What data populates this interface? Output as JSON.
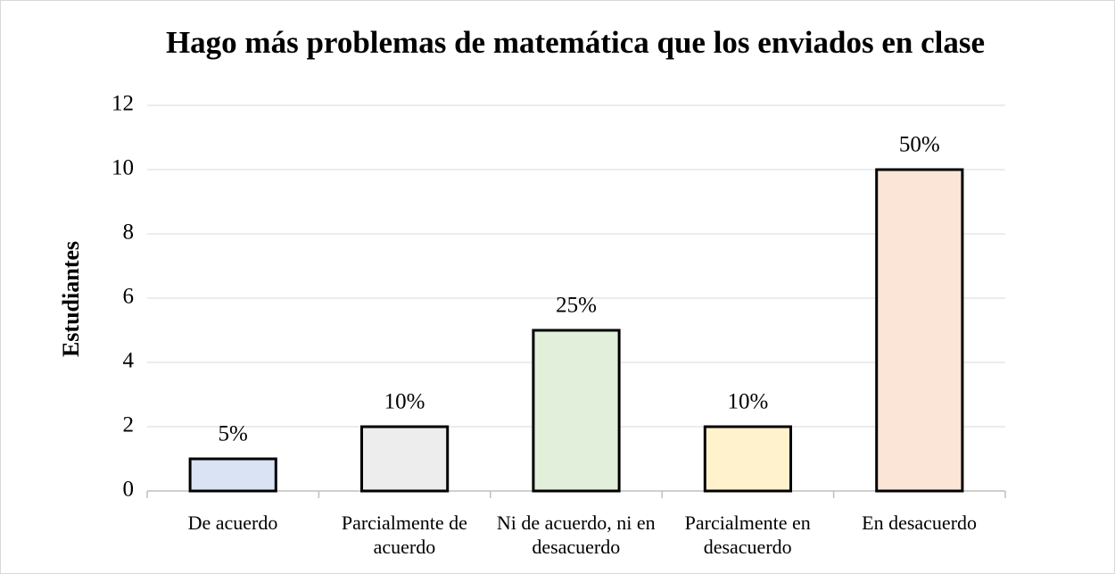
{
  "chart_data": {
    "type": "bar",
    "title": "Hago más problemas de matemática que los enviados en clase",
    "y_label": "Estudiantes",
    "categories": [
      "De acuerdo",
      "Parcialmente de acuerdo",
      "Ni de acuerdo, ni en desacuerdo",
      "Parcialmente en desacuerdo",
      "En desacuerdo"
    ],
    "values": [
      1,
      2,
      5,
      2,
      10
    ],
    "value_labels": [
      "5%",
      "10%",
      "25%",
      "10%",
      "50%"
    ],
    "colors": [
      "#dae3f3",
      "#ededed",
      "#e2efda",
      "#fff2cc",
      "#fbe5d6"
    ],
    "ylim": [
      0,
      12
    ],
    "yticks": [
      0,
      2,
      4,
      6,
      8,
      10,
      12
    ],
    "grid": true
  }
}
